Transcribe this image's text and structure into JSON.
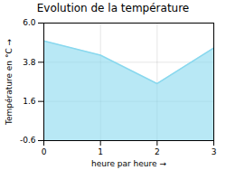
{
  "chart_data": {
    "type": "area",
    "title": "Evolution de la température",
    "xlabel": "heure par heure",
    "ylabel": "Température en °C",
    "x": [
      0,
      1,
      2,
      3
    ],
    "values": [
      5.0,
      4.2,
      2.6,
      4.6
    ],
    "color": "#89d8ee",
    "xlim": [
      0,
      3
    ],
    "xticks": [
      0,
      1,
      2,
      3
    ],
    "ylim": [
      -0.6,
      6.0
    ],
    "yticks": [
      -0.6,
      1.6,
      3.8,
      {
        "value": 6.0,
        "label": "6.0"
      }
    ],
    "grid": true
  }
}
